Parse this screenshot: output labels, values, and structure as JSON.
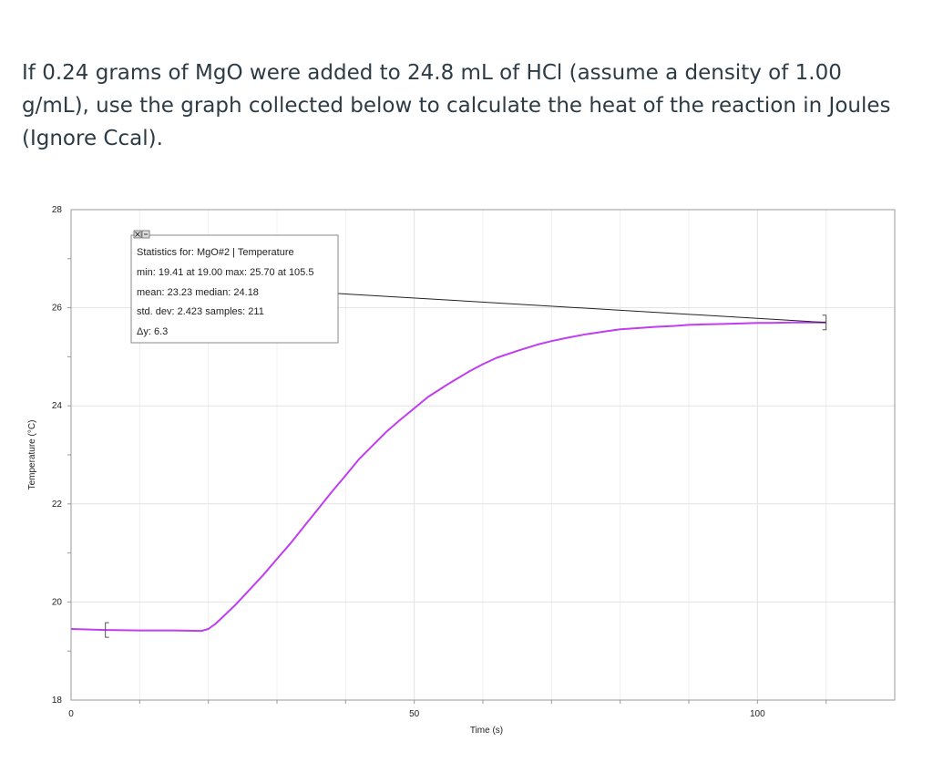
{
  "question": {
    "text": "If 0.24 grams of MgO were added to 24.8 mL of HCl (assume a density of 1.00 g/mL), use the graph collected below to calculate the heat of the reaction in Joules (Ignore Ccal)."
  },
  "stats_box": {
    "line1": "Statistics for: MgO#2 | Temperature",
    "line2": "min: 19.41 at 19.00 max: 25.70 at 105.5",
    "line3": "mean: 23.23 median: 24.18",
    "line4": "std. dev: 2.423 samples: 211",
    "line5": "Δy: 6.3",
    "close_icon": "close-icon",
    "options_icon": "options-icon"
  },
  "chart_data": {
    "type": "line",
    "title": "",
    "xlabel": "Time (s)",
    "ylabel": "Temperature (°C)",
    "xlim": [
      0,
      120
    ],
    "ylim": [
      18,
      28
    ],
    "x_ticks": [
      0,
      50,
      100
    ],
    "y_ticks": [
      18,
      20,
      22,
      24,
      26,
      28
    ],
    "grid": true,
    "line_color": "#c03df0",
    "bracket_color": "#555555",
    "selection_range": [
      5,
      110
    ],
    "series": [
      {
        "x": [
          0,
          5,
          10,
          15,
          19,
          20,
          21,
          22,
          24,
          26,
          28,
          30,
          32,
          34,
          36,
          38,
          40,
          42,
          44,
          46,
          48,
          50,
          52,
          55,
          58,
          60,
          62,
          65,
          68,
          70,
          72,
          75,
          78,
          80,
          82,
          85,
          88,
          90,
          92,
          95,
          98,
          100,
          102,
          105,
          108,
          110
        ],
        "y": [
          19.45,
          19.43,
          19.42,
          19.42,
          19.41,
          19.45,
          19.55,
          19.68,
          19.95,
          20.25,
          20.55,
          20.88,
          21.2,
          21.55,
          21.9,
          22.25,
          22.58,
          22.92,
          23.2,
          23.48,
          23.72,
          23.95,
          24.18,
          24.45,
          24.7,
          24.85,
          24.98,
          25.12,
          25.25,
          25.32,
          25.38,
          25.46,
          25.52,
          25.56,
          25.58,
          25.61,
          25.63,
          25.65,
          25.66,
          25.67,
          25.68,
          25.69,
          25.69,
          25.7,
          25.7,
          25.7
        ]
      }
    ]
  }
}
